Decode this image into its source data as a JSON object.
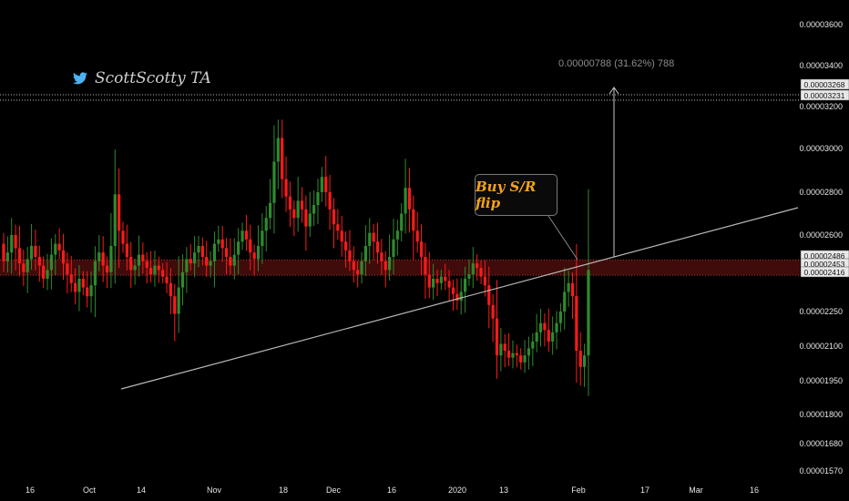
{
  "watermark": {
    "text": "ScottScotty TA",
    "icon": "twitter-bird-icon"
  },
  "measure_label": "0.00000788 (31.62%) 788",
  "callout": {
    "text": "Buy S/R flip"
  },
  "colors": {
    "background": "#000000",
    "up": "#2e8b2e",
    "down": "#ff1a1a",
    "zone": "#4a0d0d",
    "callout_text": "#f6a318"
  },
  "chart_data": {
    "type": "candlestick",
    "title": "",
    "xlabel": "",
    "ylabel": "",
    "ylim": [
      1.57e-05,
      3.6e-05
    ],
    "y_ticks": [
      "0.00003600",
      "0.00003400",
      "0.00003200",
      "0.00003000",
      "0.00002800",
      "0.00002600",
      "0.00002250",
      "0.00002100",
      "0.00001950",
      "0.00001800",
      "0.00001680",
      "0.00001570"
    ],
    "x_ticks": [
      "16",
      "Oct",
      "14",
      "Nov",
      "18",
      "Dec",
      "16",
      "2020",
      "13",
      "Feb",
      "17",
      "Mar",
      "16"
    ],
    "price_tags": [
      "0.00003268",
      "0.00003231",
      "0.00002486",
      "0.00002453",
      "0.00002416"
    ],
    "trendline": {
      "start": [
        "Sep 22",
        "0.00001940"
      ],
      "end": [
        "Mar 9",
        "0.00002750"
      ]
    },
    "resistance_zone": [
      "0.00002416",
      "0.00002486"
    ],
    "target_level": "0.00003231",
    "candles": {
      "opens": [
        2.56e-05,
        2.48e-05,
        2.52e-05,
        2.6e-05,
        2.54e-05,
        2.47e-05,
        2.43e-05,
        2.49e-05,
        2.55e-05,
        2.5e-05,
        2.46e-05,
        2.4e-05,
        2.44e-05,
        2.51e-05,
        2.56e-05,
        2.53e-05,
        2.47e-05,
        2.42e-05,
        2.38e-05,
        2.34e-05,
        2.4e-05,
        2.36e-05,
        2.32e-05,
        2.37e-05,
        2.48e-05,
        2.52e-05,
        2.46e-05,
        2.43e-05,
        2.55e-05,
        2.79e-05,
        2.62e-05,
        2.56e-05,
        2.5e-05,
        2.44e-05,
        2.46e-05,
        2.51e-05,
        2.48e-05,
        2.45e-05,
        2.42e-05,
        2.46e-05,
        2.44e-05,
        2.41e-05,
        2.38e-05,
        2.32e-05,
        2.24e-05,
        2.36e-05,
        2.43e-05,
        2.49e-05,
        2.47e-05,
        2.52e-05,
        2.55e-05,
        2.5e-05,
        2.46e-05,
        2.48e-05,
        2.56e-05,
        2.58e-05,
        2.54e-05,
        2.5e-05,
        2.46e-05,
        2.51e-05,
        2.57e-05,
        2.62e-05,
        2.58e-05,
        2.52e-05,
        2.49e-05,
        2.55e-05,
        2.62e-05,
        2.68e-05,
        2.75e-05,
        2.94e-05,
        3.05e-05,
        2.86e-05,
        2.78e-05,
        2.72e-05,
        2.68e-05,
        2.76e-05,
        2.72e-05,
        2.64e-05,
        2.7e-05,
        2.74e-05,
        2.8e-05,
        2.87e-05,
        2.8e-05,
        2.72e-05,
        2.65e-05,
        2.62e-05,
        2.57e-05,
        2.53e-05,
        2.48e-05,
        2.44e-05,
        2.42e-05,
        2.48e-05,
        2.55e-05,
        2.61e-05,
        2.57e-05,
        2.52e-05,
        2.48e-05,
        2.44e-05,
        2.5e-05,
        2.58e-05,
        2.62e-05,
        2.7e-05,
        2.82e-05,
        2.72e-05,
        2.62e-05,
        2.57e-05,
        2.5e-05,
        2.42e-05,
        2.36e-05,
        2.4e-05,
        2.38e-05,
        2.41e-05,
        2.39e-05,
        2.36e-05,
        2.33e-05,
        2.3e-05,
        2.34e-05,
        2.4e-05,
        2.42e-05,
        2.47e-05,
        2.45e-05,
        2.41e-05,
        2.37e-05,
        2.28e-05,
        2.22e-05,
        2.06e-05,
        2.11e-05,
        2.08e-05,
        2.05e-05,
        2.07e-05,
        2.06e-05,
        2.03e-05,
        2.06e-05,
        2.09e-05,
        2.12e-05,
        2.16e-05,
        2.2e-05,
        2.17e-05,
        2.12e-05,
        2.16e-05,
        2.2e-05,
        2.25e-05,
        2.34e-05,
        2.38e-05,
        2.32e-05,
        2.08e-05,
        2.01e-05,
        2.06e-05
      ],
      "closes": [
        2.48e-05,
        2.52e-05,
        2.6e-05,
        2.54e-05,
        2.47e-05,
        2.43e-05,
        2.49e-05,
        2.55e-05,
        2.5e-05,
        2.46e-05,
        2.4e-05,
        2.44e-05,
        2.51e-05,
        2.56e-05,
        2.53e-05,
        2.47e-05,
        2.42e-05,
        2.38e-05,
        2.34e-05,
        2.4e-05,
        2.36e-05,
        2.32e-05,
        2.37e-05,
        2.48e-05,
        2.52e-05,
        2.46e-05,
        2.43e-05,
        2.55e-05,
        2.79e-05,
        2.62e-05,
        2.56e-05,
        2.5e-05,
        2.44e-05,
        2.46e-05,
        2.51e-05,
        2.48e-05,
        2.45e-05,
        2.42e-05,
        2.46e-05,
        2.44e-05,
        2.41e-05,
        2.38e-05,
        2.32e-05,
        2.24e-05,
        2.36e-05,
        2.43e-05,
        2.49e-05,
        2.47e-05,
        2.52e-05,
        2.55e-05,
        2.5e-05,
        2.46e-05,
        2.48e-05,
        2.56e-05,
        2.58e-05,
        2.54e-05,
        2.5e-05,
        2.46e-05,
        2.51e-05,
        2.57e-05,
        2.62e-05,
        2.58e-05,
        2.52e-05,
        2.49e-05,
        2.55e-05,
        2.62e-05,
        2.68e-05,
        2.75e-05,
        2.94e-05,
        3.05e-05,
        2.86e-05,
        2.78e-05,
        2.72e-05,
        2.68e-05,
        2.76e-05,
        2.72e-05,
        2.64e-05,
        2.7e-05,
        2.74e-05,
        2.8e-05,
        2.87e-05,
        2.8e-05,
        2.72e-05,
        2.65e-05,
        2.62e-05,
        2.57e-05,
        2.53e-05,
        2.48e-05,
        2.44e-05,
        2.42e-05,
        2.48e-05,
        2.55e-05,
        2.61e-05,
        2.57e-05,
        2.52e-05,
        2.48e-05,
        2.44e-05,
        2.5e-05,
        2.58e-05,
        2.62e-05,
        2.7e-05,
        2.82e-05,
        2.72e-05,
        2.62e-05,
        2.57e-05,
        2.5e-05,
        2.42e-05,
        2.36e-05,
        2.4e-05,
        2.38e-05,
        2.41e-05,
        2.39e-05,
        2.36e-05,
        2.33e-05,
        2.3e-05,
        2.34e-05,
        2.4e-05,
        2.42e-05,
        2.47e-05,
        2.45e-05,
        2.41e-05,
        2.37e-05,
        2.28e-05,
        2.22e-05,
        2.06e-05,
        2.11e-05,
        2.08e-05,
        2.05e-05,
        2.07e-05,
        2.06e-05,
        2.03e-05,
        2.06e-05,
        2.09e-05,
        2.12e-05,
        2.16e-05,
        2.2e-05,
        2.17e-05,
        2.12e-05,
        2.16e-05,
        2.2e-05,
        2.25e-05,
        2.34e-05,
        2.38e-05,
        2.32e-05,
        2.08e-05,
        2.01e-05,
        2.06e-05,
        2.44e-05
      ]
    }
  }
}
